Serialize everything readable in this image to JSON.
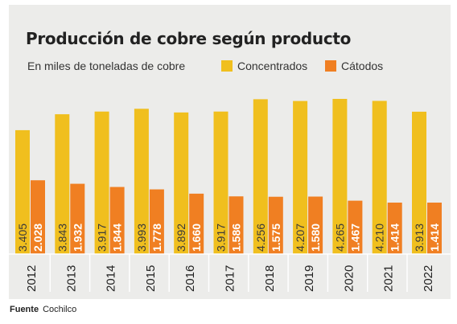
{
  "chart_data": {
    "type": "bar",
    "title": "Producción de cobre según producto",
    "subtitle": "En miles de toneladas de cobre",
    "categories": [
      "2012",
      "2013",
      "2014",
      "2015",
      "2016",
      "2017",
      "2018",
      "2019",
      "2020",
      "2021",
      "2022"
    ],
    "series": [
      {
        "name": "Concentrados",
        "color": "#f0bf1e",
        "values": [
          3405,
          3843,
          3917,
          3993,
          3892,
          3917,
          4256,
          4207,
          4265,
          4210,
          3913
        ],
        "labels": [
          "3.405",
          "3.843",
          "3.917",
          "3.993",
          "3.892",
          "3.917",
          "4.256",
          "4.207",
          "4.265",
          "4.210",
          "3.913"
        ]
      },
      {
        "name": "Cátodos",
        "color": "#f07f22",
        "values": [
          2028,
          1932,
          1844,
          1778,
          1660,
          1586,
          1575,
          1580,
          1467,
          1414,
          1414
        ],
        "labels": [
          "2.028",
          "1.932",
          "1.844",
          "1.778",
          "1.660",
          "1.586",
          "1.575",
          "1.580",
          "1.467",
          "1.414",
          "1.414"
        ]
      }
    ],
    "ylim": [
      0,
      4400
    ],
    "grid": false,
    "legend": "top"
  },
  "source": {
    "label": "Fuente",
    "value": "Cochilco"
  }
}
